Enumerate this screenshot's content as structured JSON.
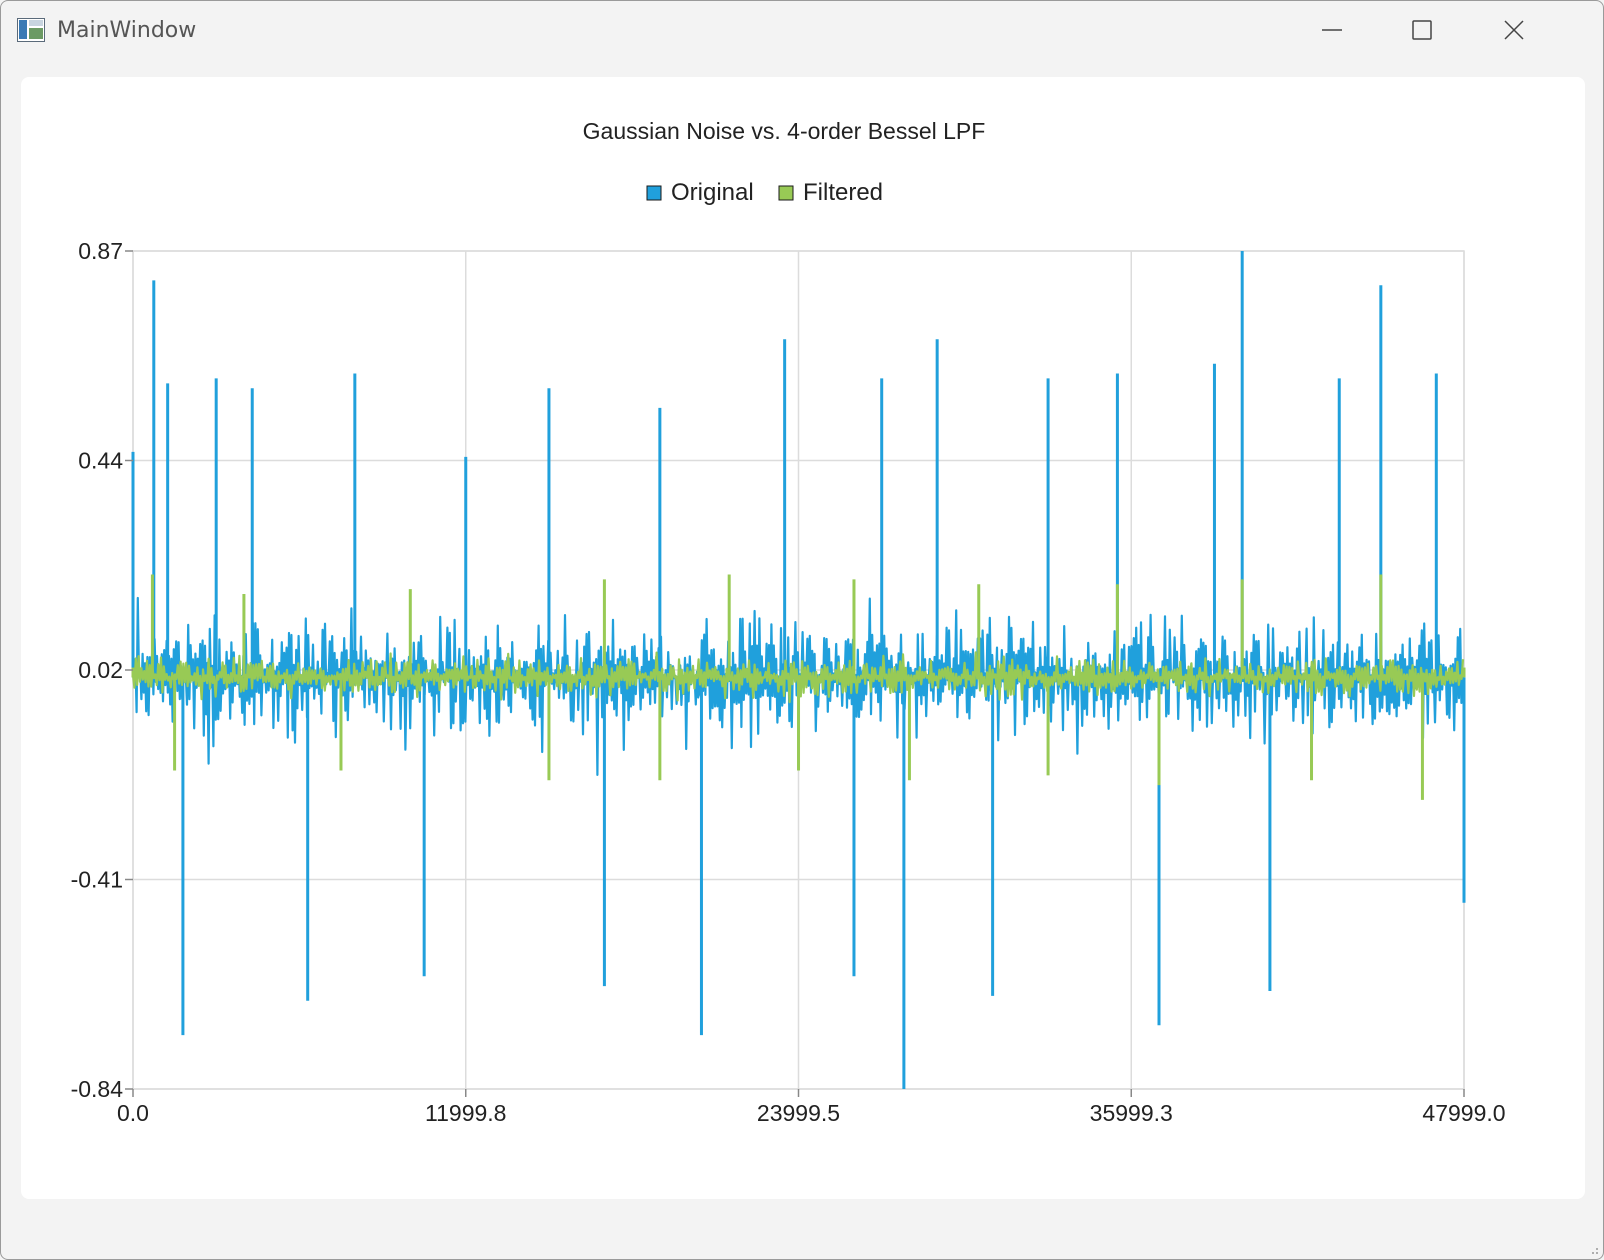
{
  "window": {
    "title": "MainWindow",
    "controls": {
      "minimize": "minimize-icon",
      "maximize": "maximize-icon",
      "close": "close-icon"
    }
  },
  "colors": {
    "original": "#20a0dc",
    "filtered": "#98ca55",
    "grid": "#dcdcdc",
    "axis_text": "#222222"
  },
  "chart_data": {
    "type": "line",
    "title": "Gaussian Noise vs. 4-order Bessel LPF",
    "legend": {
      "position": "top-center"
    },
    "grid": true,
    "xlim": [
      0.0,
      47999.0
    ],
    "ylim": [
      -0.84,
      0.87
    ],
    "x_tick_labels": [
      "0.0",
      "11999.8",
      "23999.5",
      "35999.3",
      "47999.0"
    ],
    "y_tick_labels": [
      "0.87",
      "0.44",
      "0.02",
      "-0.41",
      "-0.84"
    ],
    "series": [
      {
        "name": "Original",
        "color": "#20a0dc",
        "points": [
          [
            0,
            0.46
          ],
          [
            750,
            0.81
          ],
          [
            1250,
            0.6
          ],
          [
            1800,
            -0.73
          ],
          [
            3000,
            0.61
          ],
          [
            4300,
            0.59
          ],
          [
            6300,
            -0.66
          ],
          [
            8000,
            0.62
          ],
          [
            10500,
            -0.61
          ],
          [
            12000,
            0.45
          ],
          [
            15000,
            0.59
          ],
          [
            17000,
            -0.63
          ],
          [
            19000,
            0.55
          ],
          [
            20500,
            -0.73
          ],
          [
            23500,
            0.69
          ],
          [
            26000,
            -0.61
          ],
          [
            27000,
            0.61
          ],
          [
            27800,
            -0.84
          ],
          [
            29000,
            0.69
          ],
          [
            31000,
            -0.65
          ],
          [
            33000,
            0.61
          ],
          [
            35500,
            0.62
          ],
          [
            37000,
            -0.71
          ],
          [
            39000,
            0.64
          ],
          [
            40000,
            0.87
          ],
          [
            41000,
            -0.64
          ],
          [
            43500,
            0.61
          ],
          [
            45000,
            0.8
          ],
          [
            47000,
            0.62
          ],
          [
            47999,
            -0.46
          ]
        ]
      },
      {
        "name": "Filtered",
        "color": "#98ca55",
        "points": [
          [
            0,
            0.02
          ],
          [
            700,
            0.21
          ],
          [
            1500,
            -0.19
          ],
          [
            4000,
            0.17
          ],
          [
            7500,
            -0.19
          ],
          [
            10000,
            0.18
          ],
          [
            15000,
            -0.21
          ],
          [
            17000,
            0.2
          ],
          [
            19000,
            -0.21
          ],
          [
            21500,
            0.21
          ],
          [
            24000,
            -0.19
          ],
          [
            26000,
            0.2
          ],
          [
            28000,
            -0.21
          ],
          [
            30500,
            0.19
          ],
          [
            33000,
            -0.2
          ],
          [
            35500,
            0.19
          ],
          [
            37000,
            -0.22
          ],
          [
            40000,
            0.2
          ],
          [
            42500,
            -0.21
          ],
          [
            45000,
            0.21
          ],
          [
            46500,
            -0.25
          ],
          [
            47999,
            0.02
          ]
        ]
      }
    ]
  }
}
